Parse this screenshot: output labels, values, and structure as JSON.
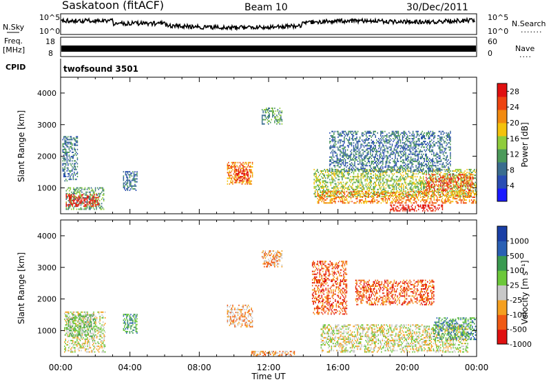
{
  "header": {
    "station": "Saskatoon (fitACF)",
    "beam": "Beam 10",
    "date": "30/Dec/2011"
  },
  "panels": {
    "noise": {
      "left_label": "N.Sky",
      "right_label": "N.Search",
      "left_ticks": [
        "10^5",
        "10^0"
      ],
      "right_ticks": [
        "10^5",
        "10^0"
      ]
    },
    "freq": {
      "left_label_1": "Freq.",
      "left_label_2": "[MHz]",
      "right_label": "Nave",
      "left_ticks": [
        "18",
        "8"
      ],
      "right_ticks": [
        "60",
        "0"
      ]
    },
    "cpid": {
      "label": "CPID",
      "value": "twofsound 3501"
    }
  },
  "colors": {
    "power": [
      "#1a1aff",
      "#2a4db4",
      "#3a6d8f",
      "#4c9a5a",
      "#8fcc3c",
      "#f4c20d",
      "#f28a10",
      "#ee4411",
      "#e01010"
    ],
    "velocity": [
      "#e01010",
      "#f05a14",
      "#f5a020",
      "#c8c8c8",
      "#6cc83a",
      "#3a9a50",
      "#2a60b4",
      "#1a3fa6"
    ]
  },
  "chart_data": [
    {
      "type": "heatmap",
      "title": "Power",
      "ylabel": "Slant Range [km]",
      "xlabel": "Time UT",
      "xlim": [
        0,
        24
      ],
      "ylim": [
        180,
        4500
      ],
      "x_ticks": [
        "00:00",
        "04:00",
        "08:00",
        "12:00",
        "16:00",
        "20:00",
        "00:00"
      ],
      "y_ticks": [
        "1000",
        "2000",
        "3000",
        "4000"
      ],
      "colorbar": {
        "label": "Power [dB]",
        "ticks": [
          "4",
          "8",
          "12",
          "16",
          "20",
          "24",
          "28"
        ],
        "range": [
          0,
          30
        ]
      },
      "patches": [
        {
          "t": [
            0.3,
            2.5
          ],
          "r": [
            300,
            1000
          ],
          "level": 3
        },
        {
          "t": [
            0.3,
            2.2
          ],
          "r": [
            400,
            800
          ],
          "level": 8
        },
        {
          "t": [
            0.1,
            1.0
          ],
          "r": [
            1200,
            2600
          ],
          "level": 2
        },
        {
          "t": [
            3.6,
            4.4
          ],
          "r": [
            900,
            1500
          ],
          "level": 2
        },
        {
          "t": [
            9.6,
            11.1
          ],
          "r": [
            1100,
            1800
          ],
          "level": 6
        },
        {
          "t": [
            10.0,
            10.8
          ],
          "r": [
            1200,
            1600
          ],
          "level": 8
        },
        {
          "t": [
            11.6,
            12.8
          ],
          "r": [
            3000,
            3500
          ],
          "level": 3
        },
        {
          "t": [
            14.6,
            24.0
          ],
          "r": [
            700,
            1600
          ],
          "level": 4
        },
        {
          "t": [
            14.8,
            24.0
          ],
          "r": [
            500,
            900
          ],
          "level": 6
        },
        {
          "t": [
            15.5,
            22.5
          ],
          "r": [
            1500,
            2800
          ],
          "level": 2
        },
        {
          "t": [
            19.0,
            22.0
          ],
          "r": [
            250,
            450
          ],
          "level": 8
        },
        {
          "t": [
            21.0,
            23.8
          ],
          "r": [
            900,
            1400
          ],
          "level": 7
        }
      ]
    },
    {
      "type": "heatmap",
      "title": "Velocity",
      "ylabel": "Slant Range [km]",
      "xlabel": "Time UT",
      "xlim": [
        0,
        24
      ],
      "ylim": [
        180,
        4500
      ],
      "x_ticks": [
        "00:00",
        "04:00",
        "08:00",
        "12:00",
        "16:00",
        "20:00",
        "00:00"
      ],
      "y_ticks": [
        "1000",
        "2000",
        "3000",
        "4000"
      ],
      "colorbar": {
        "label": "Velocity [m s⁻¹]",
        "ticks": [
          "1000",
          "500",
          "100",
          "25",
          "-25",
          "-100",
          "-500",
          "-1000"
        ],
        "range": [
          -1000,
          1000
        ]
      },
      "patches": [
        {
          "t": [
            0.2,
            2.6
          ],
          "r": [
            300,
            1600
          ],
          "level": 3
        },
        {
          "t": [
            0.3,
            2.0
          ],
          "r": [
            800,
            1500
          ],
          "level": 4
        },
        {
          "t": [
            3.6,
            4.4
          ],
          "r": [
            900,
            1500
          ],
          "level": 5
        },
        {
          "t": [
            9.6,
            11.1
          ],
          "r": [
            1100,
            1800
          ],
          "level": 2
        },
        {
          "t": [
            11.6,
            12.8
          ],
          "r": [
            3000,
            3500
          ],
          "level": 2
        },
        {
          "t": [
            15.0,
            23.5
          ],
          "r": [
            300,
            1200
          ],
          "level": 3
        },
        {
          "t": [
            17.0,
            21.5
          ],
          "r": [
            1800,
            2600
          ],
          "level": 1
        },
        {
          "t": [
            21.5,
            24.0
          ],
          "r": [
            700,
            1400
          ],
          "level": 5
        },
        {
          "t": [
            14.5,
            16.5
          ],
          "r": [
            1500,
            3200
          ],
          "level": 1
        },
        {
          "t": [
            11.0,
            13.5
          ],
          "r": [
            180,
            350
          ],
          "level": 2
        }
      ]
    }
  ]
}
